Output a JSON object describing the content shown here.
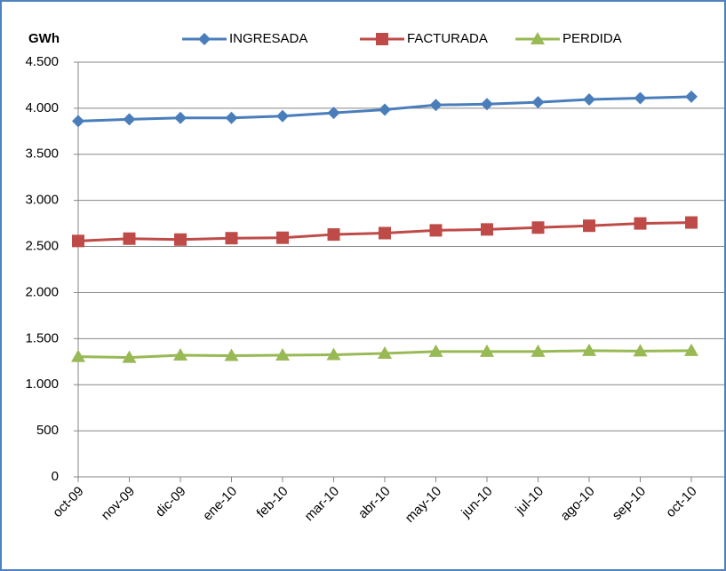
{
  "chart_data": {
    "type": "line",
    "y_label": "GWh",
    "categories": [
      "oct-09",
      "nov-09",
      "dic-09",
      "ene-10",
      "feb-10",
      "mar-10",
      "abr-10",
      "may-10",
      "jun-10",
      "jul-10",
      "ago-10",
      "sep-10",
      "oct-10"
    ],
    "series": [
      {
        "name": "INGRESADA",
        "color": "#4a7ebb",
        "marker": "diamond",
        "values": [
          3860,
          3880,
          3895,
          3895,
          3915,
          3950,
          3985,
          4035,
          4045,
          4065,
          4095,
          4110,
          4125
        ]
      },
      {
        "name": "FACTURADA",
        "color": "#be4b48",
        "marker": "square",
        "values": [
          2560,
          2585,
          2575,
          2590,
          2595,
          2630,
          2645,
          2675,
          2685,
          2705,
          2725,
          2750,
          2760
        ]
      },
      {
        "name": "PERDIDA",
        "color": "#98b954",
        "marker": "triangle",
        "values": [
          1305,
          1295,
          1320,
          1315,
          1320,
          1325,
          1340,
          1360,
          1360,
          1360,
          1370,
          1365,
          1370
        ]
      }
    ],
    "ylim": [
      0,
      4500
    ],
    "yticks": [
      0,
      500,
      {
        "value": 1000,
        "label": "1.000"
      },
      {
        "value": 1500,
        "label": "1.500"
      },
      {
        "value": 2000,
        "label": "2.000"
      },
      {
        "value": 2500,
        "label": "2.500"
      },
      {
        "value": 3000,
        "label": "3.000"
      },
      {
        "value": 3500,
        "label": "3.500"
      },
      {
        "value": 4000,
        "label": "4.000"
      },
      {
        "value": 4500,
        "label": "4.500"
      }
    ],
    "grid": true,
    "legend": "top"
  }
}
